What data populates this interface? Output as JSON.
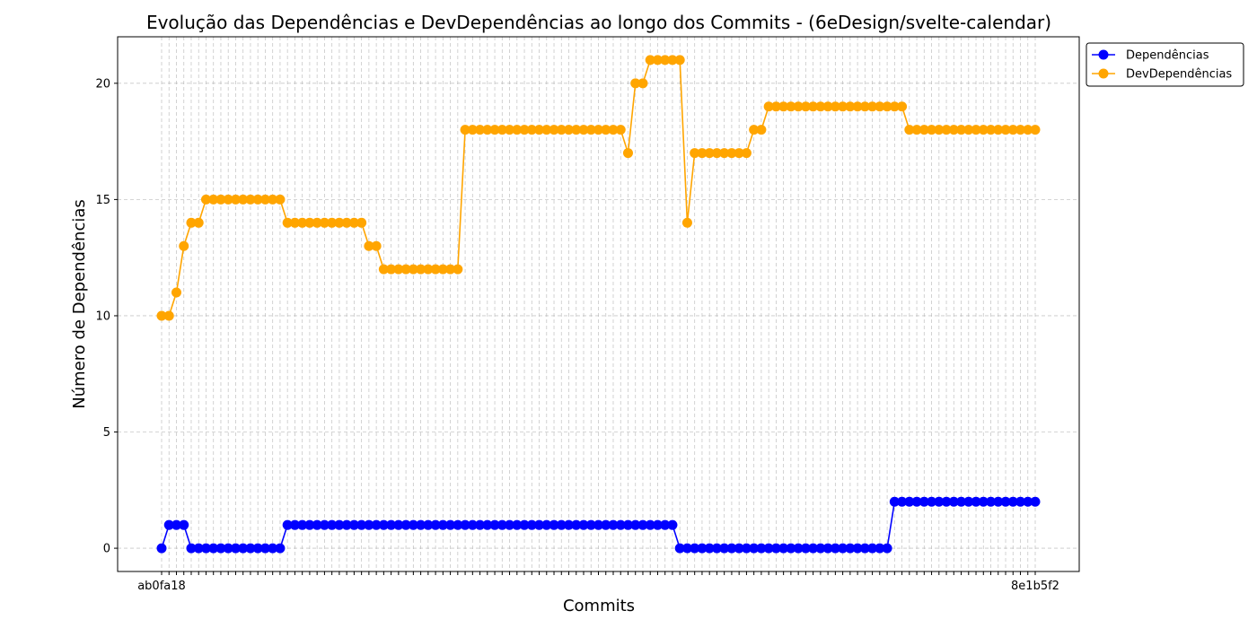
{
  "chart_data": {
    "type": "line",
    "title": "Evolução das Dependências e DevDependências ao longo dos Commits - (6eDesign/svelte-calendar)",
    "xlabel": "Commits",
    "ylabel": "Número de Dependências",
    "ylim": [
      -1.0,
      22.0
    ],
    "yticks": [
      0,
      5,
      10,
      15,
      20
    ],
    "grid": true,
    "legend_position": "upper-right-outside",
    "x_tick_labels_overlapping": true,
    "x_tick_label_first": "ab0fa18",
    "x_tick_label_last": "8e1b5f2",
    "series": [
      {
        "name": "Dependências",
        "color": "#0000ff",
        "values": [
          0,
          1,
          1,
          1,
          0,
          0,
          0,
          0,
          0,
          0,
          0,
          0,
          0,
          0,
          0,
          0,
          0,
          1,
          1,
          1,
          1,
          1,
          1,
          1,
          1,
          1,
          1,
          1,
          1,
          1,
          1,
          1,
          1,
          1,
          1,
          1,
          1,
          1,
          1,
          1,
          1,
          1,
          1,
          1,
          1,
          1,
          1,
          1,
          1,
          1,
          1,
          1,
          1,
          1,
          1,
          1,
          1,
          1,
          1,
          1,
          1,
          1,
          1,
          1,
          1,
          1,
          1,
          1,
          1,
          1,
          0,
          0,
          0,
          0,
          0,
          0,
          0,
          0,
          0,
          0,
          0,
          0,
          0,
          0,
          0,
          0,
          0,
          0,
          0,
          0,
          0,
          0,
          0,
          0,
          0,
          0,
          0,
          0,
          0,
          2,
          2,
          2,
          2,
          2,
          2,
          2,
          2,
          2,
          2,
          2,
          2,
          2,
          2,
          2,
          2,
          2,
          2,
          2,
          2
        ]
      },
      {
        "name": "DevDependências",
        "color": "#ffa500",
        "values": [
          10,
          10,
          11,
          13,
          14,
          14,
          15,
          15,
          15,
          15,
          15,
          15,
          15,
          15,
          15,
          15,
          15,
          14,
          14,
          14,
          14,
          14,
          14,
          14,
          14,
          14,
          14,
          14,
          13,
          13,
          12,
          12,
          12,
          12,
          12,
          12,
          12,
          12,
          12,
          12,
          12,
          18,
          18,
          18,
          18,
          18,
          18,
          18,
          18,
          18,
          18,
          18,
          18,
          18,
          18,
          18,
          18,
          18,
          18,
          18,
          18,
          18,
          18,
          17,
          20,
          20,
          21,
          21,
          21,
          21,
          21,
          14,
          17,
          17,
          17,
          17,
          17,
          17,
          17,
          17,
          18,
          18,
          19,
          19,
          19,
          19,
          19,
          19,
          19,
          19,
          19,
          19,
          19,
          19,
          19,
          19,
          19,
          19,
          19,
          19,
          19,
          18,
          18,
          18,
          18,
          18,
          18,
          18,
          18,
          18,
          18,
          18,
          18,
          18,
          18,
          18,
          18,
          18,
          18
        ]
      }
    ]
  }
}
